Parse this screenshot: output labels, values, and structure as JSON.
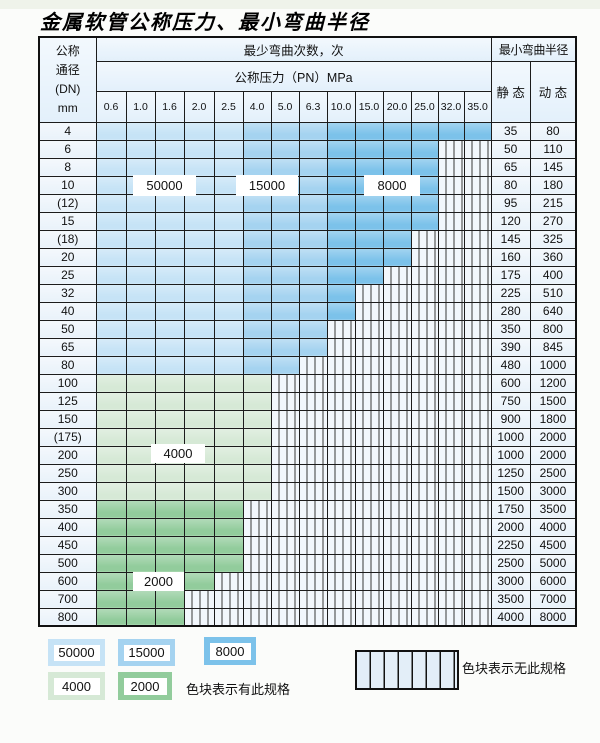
{
  "title": "金属软管公称压力、最小弯曲半径",
  "table": {
    "dn_header_lines": [
      "公称",
      "通径",
      "(DN)",
      "mm"
    ],
    "cycles_header": "最少弯曲次数，次",
    "pressure_header": "公称压力（PN）MPa",
    "radius_header": "最小弯曲半径",
    "static_header": "静 态",
    "dynamic_header": "动 态",
    "pressure_ticks": [
      "0.6",
      "1.0",
      "1.6",
      "2.0",
      "2.5",
      "4.0",
      "5.0",
      "6.3",
      "10.0",
      "15.0",
      "20.0",
      "25.0",
      "32.0",
      "35.0"
    ],
    "rows": [
      {
        "dn": "4",
        "extent": 14,
        "palette": "blue",
        "static": "35",
        "dynamic": "80"
      },
      {
        "dn": "6",
        "extent": 12,
        "palette": "blue",
        "static": "50",
        "dynamic": "110"
      },
      {
        "dn": "8",
        "extent": 12,
        "palette": "blue",
        "static": "65",
        "dynamic": "145"
      },
      {
        "dn": "10",
        "extent": 12,
        "palette": "blue",
        "static": "80",
        "dynamic": "180"
      },
      {
        "dn": "(12)",
        "extent": 12,
        "palette": "blue",
        "static": "95",
        "dynamic": "215"
      },
      {
        "dn": "15",
        "extent": 12,
        "palette": "blue",
        "static": "120",
        "dynamic": "270"
      },
      {
        "dn": "(18)",
        "extent": 11,
        "palette": "blue",
        "static": "145",
        "dynamic": "325"
      },
      {
        "dn": "20",
        "extent": 11,
        "palette": "blue",
        "static": "160",
        "dynamic": "360"
      },
      {
        "dn": "25",
        "extent": 10,
        "palette": "blue",
        "static": "175",
        "dynamic": "400"
      },
      {
        "dn": "32",
        "extent": 9,
        "palette": "blue",
        "static": "225",
        "dynamic": "510"
      },
      {
        "dn": "40",
        "extent": 9,
        "palette": "blue",
        "static": "280",
        "dynamic": "640"
      },
      {
        "dn": "50",
        "extent": 8,
        "palette": "blue",
        "static": "350",
        "dynamic": "800"
      },
      {
        "dn": "65",
        "extent": 8,
        "palette": "blue",
        "static": "390",
        "dynamic": "845"
      },
      {
        "dn": "80",
        "extent": 7,
        "palette": "blue",
        "static": "480",
        "dynamic": "1000"
      },
      {
        "dn": "100",
        "extent": 6,
        "palette": "green1",
        "static": "600",
        "dynamic": "1200"
      },
      {
        "dn": "125",
        "extent": 6,
        "palette": "green1",
        "static": "750",
        "dynamic": "1500"
      },
      {
        "dn": "150",
        "extent": 6,
        "palette": "green1",
        "static": "900",
        "dynamic": "1800"
      },
      {
        "dn": "(175)",
        "extent": 6,
        "palette": "green1",
        "static": "1000",
        "dynamic": "2000"
      },
      {
        "dn": "200",
        "extent": 6,
        "palette": "green1",
        "static": "1000",
        "dynamic": "2000"
      },
      {
        "dn": "250",
        "extent": 6,
        "palette": "green1",
        "static": "1250",
        "dynamic": "2500"
      },
      {
        "dn": "300",
        "extent": 6,
        "palette": "green1",
        "static": "1500",
        "dynamic": "3000"
      },
      {
        "dn": "350",
        "extent": 5,
        "palette": "green2",
        "static": "1750",
        "dynamic": "3500"
      },
      {
        "dn": "400",
        "extent": 5,
        "palette": "green2",
        "static": "2000",
        "dynamic": "4000"
      },
      {
        "dn": "450",
        "extent": 5,
        "palette": "green2",
        "static": "2250",
        "dynamic": "4500"
      },
      {
        "dn": "500",
        "extent": 5,
        "palette": "green2",
        "static": "2500",
        "dynamic": "5000"
      },
      {
        "dn": "600",
        "extent": 4,
        "palette": "green2",
        "static": "3000",
        "dynamic": "6000"
      },
      {
        "dn": "700",
        "extent": 3,
        "palette": "green2",
        "static": "3500",
        "dynamic": "7000"
      },
      {
        "dn": "800",
        "extent": 3,
        "palette": "green2",
        "static": "4000",
        "dynamic": "8000"
      }
    ]
  },
  "region_labels": {
    "b50000": "50000",
    "b15000": "15000",
    "b8000": "8000",
    "g4000": "4000",
    "g2000": "2000"
  },
  "cycle_zones": [
    {
      "cycles": "50000",
      "pressure_cols": [
        "0.6",
        "1.0",
        "1.6",
        "2.0",
        "2.5"
      ],
      "dn_range": "4-80"
    },
    {
      "cycles": "15000",
      "pressure_cols": [
        "4.0",
        "5.0",
        "6.3"
      ],
      "dn_range": "4-80"
    },
    {
      "cycles": "8000",
      "pressure_cols": [
        "10.0",
        "15.0",
        "20.0",
        "25.0",
        "32.0",
        "35.0"
      ],
      "dn_range": "4-80"
    },
    {
      "cycles": "4000",
      "dn_range": "100-300"
    },
    {
      "cycles": "2000",
      "dn_range": "350-800"
    }
  ],
  "legend": {
    "blocks": [
      {
        "label": "50000",
        "color": "#c6e3f6"
      },
      {
        "label": "15000",
        "color": "#a5d3f0"
      },
      {
        "label": "8000",
        "color": "#7cc2ea"
      },
      {
        "label": "4000",
        "color": "#d6e9d6"
      },
      {
        "label": "2000",
        "color": "#92cc9c"
      }
    ],
    "has_spec_text": "色块表示有此规格",
    "no_spec_text": "色块表示无此规格"
  },
  "colors": {
    "cycles_50000": "#c6e3f6",
    "cycles_15000": "#a5d3f0",
    "cycles_8000": "#7cc2ea",
    "cycles_4000": "#d6e9d6",
    "cycles_2000": "#92cc9c",
    "no_spec_cell": "#f2f7fc",
    "header_bg": "#e3f0fb",
    "label_column_bg": "#e9f2fa",
    "grid_line": "#1c1c1c"
  }
}
